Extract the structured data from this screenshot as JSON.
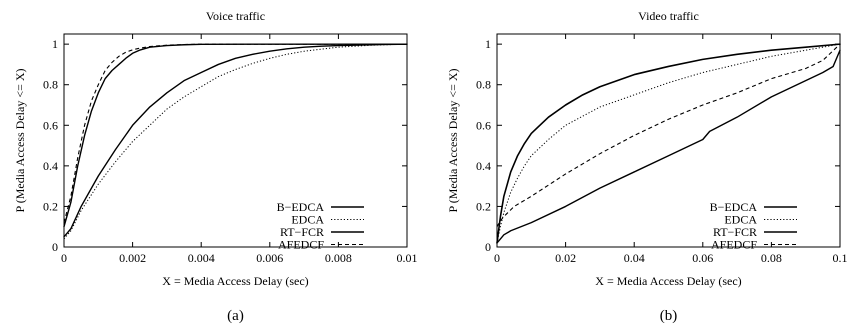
{
  "chart_data": [
    {
      "type": "line",
      "title": "Voice traffic",
      "xlabel": "X = Media Access Delay (sec)",
      "ylabel": "P (Media Access Delay <= X)",
      "caption": "(a)",
      "xlim": [
        0,
        0.01
      ],
      "ylim": [
        0,
        1.05
      ],
      "xticks": [
        0,
        0.002,
        0.004,
        0.006,
        0.008,
        0.01
      ],
      "xtick_labels": [
        "0",
        "0.002",
        "0.004",
        "0.006",
        "0.008",
        "0.01"
      ],
      "yticks": [
        0,
        0.2,
        0.4,
        0.6,
        0.8,
        1
      ],
      "ytick_labels": [
        "0",
        "0.2",
        "0.4",
        "0.6",
        "0.8",
        "1"
      ],
      "grid": false,
      "legend_position": "bottom-right",
      "series": [
        {
          "name": "B−EDCA",
          "style": "solid",
          "width": 1.4,
          "points": [
            [
              0,
              0.05
            ],
            [
              0.0002,
              0.09
            ],
            [
              0.0005,
              0.2
            ],
            [
              0.001,
              0.35
            ],
            [
              0.0015,
              0.48
            ],
            [
              0.002,
              0.6
            ],
            [
              0.0025,
              0.69
            ],
            [
              0.003,
              0.76
            ],
            [
              0.0035,
              0.82
            ],
            [
              0.004,
              0.86
            ],
            [
              0.0045,
              0.9
            ],
            [
              0.005,
              0.93
            ],
            [
              0.0055,
              0.95
            ],
            [
              0.006,
              0.965
            ],
            [
              0.0065,
              0.977
            ],
            [
              0.007,
              0.985
            ],
            [
              0.0075,
              0.99
            ],
            [
              0.008,
              0.993
            ],
            [
              0.009,
              0.997
            ],
            [
              0.01,
              1
            ]
          ]
        },
        {
          "name": "EDCA",
          "style": "dotted",
          "width": 1.0,
          "points": [
            [
              0,
              0.04
            ],
            [
              0.0002,
              0.08
            ],
            [
              0.0005,
              0.18
            ],
            [
              0.001,
              0.31
            ],
            [
              0.0015,
              0.42
            ],
            [
              0.002,
              0.52
            ],
            [
              0.0025,
              0.6
            ],
            [
              0.003,
              0.68
            ],
            [
              0.0035,
              0.74
            ],
            [
              0.004,
              0.79
            ],
            [
              0.0045,
              0.84
            ],
            [
              0.005,
              0.875
            ],
            [
              0.0055,
              0.905
            ],
            [
              0.006,
              0.93
            ],
            [
              0.0065,
              0.95
            ],
            [
              0.007,
              0.965
            ],
            [
              0.0075,
              0.975
            ],
            [
              0.008,
              0.985
            ],
            [
              0.009,
              0.995
            ],
            [
              0.01,
              1
            ]
          ]
        },
        {
          "name": "RT−FCR",
          "style": "solid",
          "width": 1.4,
          "points": [
            [
              0,
              0.1
            ],
            [
              0.0002,
              0.22
            ],
            [
              0.0004,
              0.4
            ],
            [
              0.0006,
              0.55
            ],
            [
              0.0008,
              0.67
            ],
            [
              0.001,
              0.76
            ],
            [
              0.0012,
              0.83
            ],
            [
              0.0014,
              0.87
            ],
            [
              0.0016,
              0.9
            ],
            [
              0.0018,
              0.93
            ],
            [
              0.002,
              0.955
            ],
            [
              0.0022,
              0.97
            ],
            [
              0.0025,
              0.985
            ],
            [
              0.003,
              0.993
            ],
            [
              0.0035,
              0.997
            ],
            [
              0.004,
              0.999
            ],
            [
              0.006,
              1
            ],
            [
              0.01,
              1
            ]
          ]
        },
        {
          "name": "AFEDCF",
          "style": "dashed",
          "width": 1.1,
          "points": [
            [
              0,
              0.12
            ],
            [
              0.0002,
              0.25
            ],
            [
              0.0004,
              0.44
            ],
            [
              0.0006,
              0.6
            ],
            [
              0.0008,
              0.72
            ],
            [
              0.001,
              0.8
            ],
            [
              0.0012,
              0.87
            ],
            [
              0.0014,
              0.91
            ],
            [
              0.0016,
              0.94
            ],
            [
              0.0018,
              0.96
            ],
            [
              0.002,
              0.972
            ],
            [
              0.0022,
              0.98
            ],
            [
              0.0025,
              0.988
            ],
            [
              0.003,
              0.995
            ],
            [
              0.0035,
              0.998
            ],
            [
              0.004,
              1
            ],
            [
              0.01,
              1
            ]
          ]
        }
      ]
    },
    {
      "type": "line",
      "title": "Video traffic",
      "xlabel": "X = Media Access Delay (sec)",
      "ylabel": "P (Media Access Delay <= X)",
      "caption": "(b)",
      "xlim": [
        0,
        0.1
      ],
      "ylim": [
        0,
        1.05
      ],
      "xticks": [
        0,
        0.02,
        0.04,
        0.06,
        0.08,
        0.1
      ],
      "xtick_labels": [
        "0",
        "0.02",
        "0.04",
        "0.06",
        "0.08",
        "0.1"
      ],
      "yticks": [
        0,
        0.2,
        0.4,
        0.6,
        0.8,
        1
      ],
      "ytick_labels": [
        "0",
        "0.2",
        "0.4",
        "0.6",
        "0.8",
        "1"
      ],
      "grid": false,
      "legend_position": "bottom-right",
      "series": [
        {
          "name": "B−EDCA",
          "style": "solid",
          "width": 1.6,
          "points": [
            [
              0,
              0.02
            ],
            [
              0.001,
              0.15
            ],
            [
              0.002,
              0.25
            ],
            [
              0.004,
              0.37
            ],
            [
              0.006,
              0.45
            ],
            [
              0.008,
              0.51
            ],
            [
              0.01,
              0.56
            ],
            [
              0.015,
              0.64
            ],
            [
              0.02,
              0.7
            ],
            [
              0.025,
              0.75
            ],
            [
              0.03,
              0.79
            ],
            [
              0.04,
              0.85
            ],
            [
              0.05,
              0.89
            ],
            [
              0.06,
              0.925
            ],
            [
              0.07,
              0.95
            ],
            [
              0.08,
              0.97
            ],
            [
              0.09,
              0.985
            ],
            [
              0.1,
              1
            ]
          ]
        },
        {
          "name": "EDCA",
          "style": "dotted",
          "width": 1.0,
          "points": [
            [
              0,
              0.02
            ],
            [
              0.001,
              0.1
            ],
            [
              0.002,
              0.17
            ],
            [
              0.004,
              0.27
            ],
            [
              0.006,
              0.34
            ],
            [
              0.008,
              0.4
            ],
            [
              0.01,
              0.45
            ],
            [
              0.015,
              0.53
            ],
            [
              0.02,
              0.6
            ],
            [
              0.03,
              0.69
            ],
            [
              0.04,
              0.75
            ],
            [
              0.05,
              0.81
            ],
            [
              0.06,
              0.86
            ],
            [
              0.07,
              0.9
            ],
            [
              0.08,
              0.94
            ],
            [
              0.09,
              0.97
            ],
            [
              0.1,
              1
            ]
          ]
        },
        {
          "name": "RT−FCR",
          "style": "solid",
          "width": 1.4,
          "points": [
            [
              0,
              0.02
            ],
            [
              0.001,
              0.04
            ],
            [
              0.002,
              0.06
            ],
            [
              0.004,
              0.08
            ],
            [
              0.01,
              0.12
            ],
            [
              0.02,
              0.2
            ],
            [
              0.03,
              0.29
            ],
            [
              0.04,
              0.37
            ],
            [
              0.05,
              0.45
            ],
            [
              0.06,
              0.53
            ],
            [
              0.062,
              0.57
            ],
            [
              0.07,
              0.64
            ],
            [
              0.08,
              0.74
            ],
            [
              0.09,
              0.82
            ],
            [
              0.095,
              0.86
            ],
            [
              0.098,
              0.89
            ],
            [
              0.1,
              0.97
            ]
          ]
        },
        {
          "name": "AFEDCF",
          "style": "dashed",
          "width": 1.1,
          "points": [
            [
              0,
              0.1
            ],
            [
              0.001,
              0.13
            ],
            [
              0.002,
              0.15
            ],
            [
              0.005,
              0.2
            ],
            [
              0.01,
              0.25
            ],
            [
              0.02,
              0.36
            ],
            [
              0.03,
              0.46
            ],
            [
              0.04,
              0.55
            ],
            [
              0.05,
              0.63
            ],
            [
              0.06,
              0.7
            ],
            [
              0.07,
              0.76
            ],
            [
              0.08,
              0.83
            ],
            [
              0.09,
              0.88
            ],
            [
              0.095,
              0.92
            ],
            [
              0.1,
              1
            ]
          ]
        }
      ]
    }
  ]
}
